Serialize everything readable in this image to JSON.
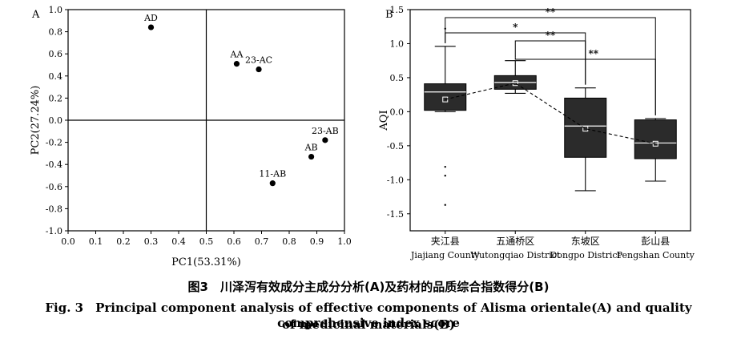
{
  "chart_data": [
    {
      "type": "scatter",
      "panel_label": "A",
      "xlabel": "PC1(53.31%)",
      "ylabel": "PC2(27.24%)",
      "xlim": [
        0.0,
        1.0
      ],
      "ylim": [
        -1.0,
        1.0
      ],
      "x_ticks": [
        "0.0",
        "0.1",
        "0.2",
        "0.3",
        "0.4",
        "0.5",
        "0.6",
        "0.7",
        "0.8",
        "0.9",
        "1.0"
      ],
      "y_ticks": [
        "1.0",
        "0.8",
        "0.6",
        "0.4",
        "0.2",
        "0.0",
        "-0.2",
        "-0.4",
        "-0.6",
        "-0.8",
        "-1.0"
      ],
      "reference_lines": {
        "x": 0.5,
        "y": 0.0
      },
      "points": [
        {
          "label": "AD",
          "x": 0.3,
          "y": 0.84
        },
        {
          "label": "AA",
          "x": 0.61,
          "y": 0.51
        },
        {
          "label": "23-AC",
          "x": 0.69,
          "y": 0.46
        },
        {
          "label": "23-AB",
          "x": 0.93,
          "y": -0.18
        },
        {
          "label": "AB",
          "x": 0.88,
          "y": -0.33
        },
        {
          "label": "11-AB",
          "x": 0.74,
          "y": -0.57
        }
      ]
    },
    {
      "type": "box",
      "panel_label": "B",
      "ylabel": "AQI",
      "ylim": [
        -1.75,
        1.5
      ],
      "y_ticks": [
        "1.5",
        "1.0",
        "0.5",
        "0.0",
        "-0.5",
        "-1.0",
        "-1.5"
      ],
      "categories": [
        {
          "cn": "夹江县",
          "en": "Jiajiang County"
        },
        {
          "cn": "五通桥区",
          "en": "Wutongqiao District"
        },
        {
          "cn": "东坡区",
          "en": "Dongpo District"
        },
        {
          "cn": "彭山县",
          "en": "Pengshan County"
        }
      ],
      "boxes": [
        {
          "whisker_low": 0.0,
          "q1": 0.02,
          "median": 0.29,
          "q3": 0.41,
          "whisker_high": 0.96,
          "mean": 0.18,
          "outliers": [
            1.22,
            -0.81,
            -0.94,
            -1.37
          ]
        },
        {
          "whisker_low": 0.27,
          "q1": 0.33,
          "median": 0.43,
          "q3": 0.53,
          "whisker_high": 0.75,
          "mean": 0.42,
          "outliers": []
        },
        {
          "whisker_low": -1.16,
          "q1": -0.67,
          "median": -0.21,
          "q3": 0.2,
          "whisker_high": 0.35,
          "mean": -0.25,
          "outliers": []
        },
        {
          "whisker_low": -1.02,
          "q1": -0.69,
          "median": -0.46,
          "q3": -0.12,
          "whisker_high": -0.1,
          "mean": -0.47,
          "outliers": []
        }
      ],
      "significance": [
        {
          "from": 0,
          "to": 3,
          "label": "**"
        },
        {
          "from": 0,
          "to": 2,
          "label": "*"
        },
        {
          "from": 1,
          "to": 2,
          "label": "**"
        },
        {
          "from": 1,
          "to": 3,
          "label": "**"
        }
      ]
    }
  ],
  "caption": {
    "cn": "图3　川泽泻有效成分主成分分析(A)及药材的品质综合指数得分(B)",
    "en_line1": "Fig. 3　Principal component analysis of effective components of Alisma orientale(A) and quality comprehensive index score",
    "en_line2": "of medicinal materials(B)"
  }
}
